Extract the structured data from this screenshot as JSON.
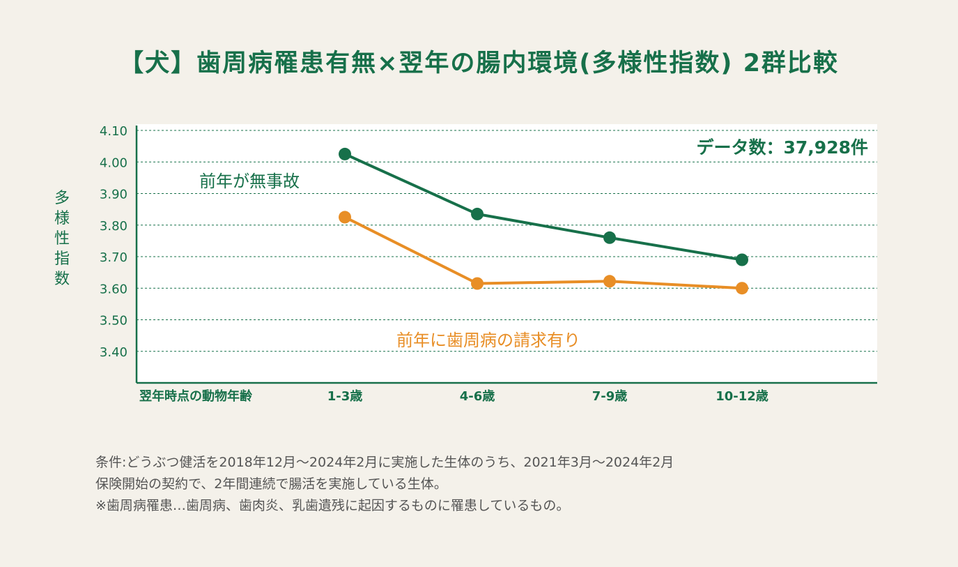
{
  "title": "【犬】歯周病罹患有無×翌年の腸内環境(多様性指数) 2群比較",
  "colors": {
    "primary": "#17704a",
    "secondary": "#e88e26",
    "background": "#f4f1ea"
  },
  "chart_data": {
    "type": "line",
    "title": "【犬】歯周病罹患有無×翌年の腸内環境(多様性指数) 2群比較",
    "ylabel": [
      "多",
      "様",
      "性",
      "指",
      "数"
    ],
    "xlabel": "翌年時点の動物年齢",
    "categories": [
      "1-3歳",
      "4-6歳",
      "7-9歳",
      "10-12歳"
    ],
    "yticks": [
      "4.10",
      "4.00",
      "3.90",
      "3.80",
      "3.70",
      "3.60",
      "3.50",
      "3.40"
    ],
    "ylim": [
      3.3,
      4.1
    ],
    "grid": true,
    "series": [
      {
        "name": "前年が無事故",
        "color": "#17704a",
        "values": [
          4.025,
          3.835,
          3.76,
          3.69
        ]
      },
      {
        "name": "前年に歯周病の請求有り",
        "color": "#e88e26",
        "values": [
          3.825,
          3.615,
          3.622,
          3.6
        ]
      }
    ],
    "annotation": "データ数：37,928件"
  },
  "notes": [
    "条件:どうぶつ健活を2018年12月～2024年2月に実施した生体のうち、2021年3月～2024年2月",
    "保険開始の契約で、2年間連続で腸活を実施している生体。",
    "※歯周病罹患…歯周病、歯肉炎、乳歯遺残に起因するものに罹患しているもの。"
  ]
}
